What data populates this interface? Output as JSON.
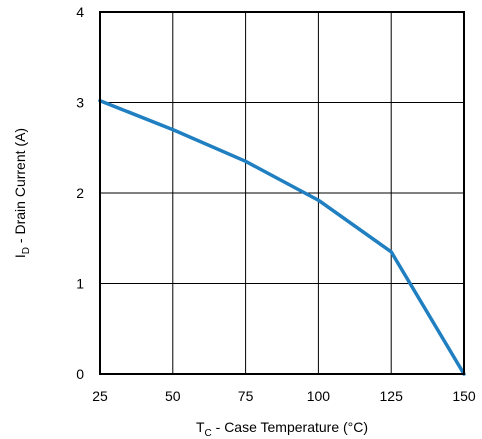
{
  "chart_data": {
    "type": "line",
    "title": "",
    "xlabel": {
      "main": "T",
      "sub": "C",
      "rest": " - Case Temperature (°C)"
    },
    "ylabel": {
      "main": "I",
      "sub": "D",
      "rest": " - Drain Current (A)"
    },
    "xlim": [
      25,
      150
    ],
    "ylim": [
      0,
      4
    ],
    "xticks": [
      "25",
      "50",
      "75",
      "100",
      "125",
      "150"
    ],
    "yticks": [
      "0",
      "1",
      "2",
      "3",
      "4"
    ],
    "grid": true,
    "legend": "none",
    "series": [
      {
        "color": "#1f7fc1",
        "x": [
          25,
          50,
          75,
          100,
          125,
          150
        ],
        "y": [
          3.02,
          2.7,
          2.35,
          1.92,
          1.35,
          0
        ]
      }
    ]
  }
}
